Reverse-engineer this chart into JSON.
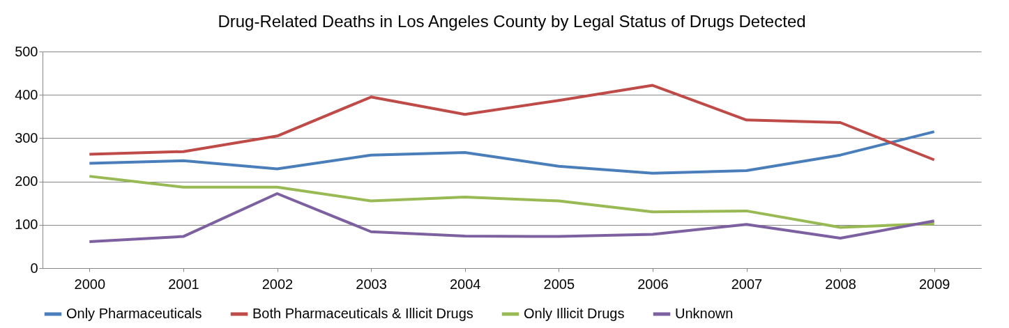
{
  "chart_data": {
    "type": "line",
    "title": "Drug-Related Deaths in Los Angeles County by Legal Status of Drugs Detected",
    "categories": [
      "2000",
      "2001",
      "2002",
      "2003",
      "2004",
      "2005",
      "2006",
      "2007",
      "2008",
      "2009"
    ],
    "series": [
      {
        "name": "Only Pharmaceuticals",
        "color": "#4a7ebb",
        "values": [
          242,
          248,
          229,
          261,
          267,
          235,
          219,
          225,
          261,
          315
        ]
      },
      {
        "name": "Both Pharmaceuticals & Illicit Drugs",
        "color": "#be4b48",
        "values": [
          263,
          269,
          305,
          395,
          355,
          387,
          422,
          342,
          336,
          250
        ]
      },
      {
        "name": "Only Illicit Drugs",
        "color": "#98b954",
        "values": [
          212,
          187,
          187,
          155,
          164,
          155,
          130,
          132,
          94,
          103
        ]
      },
      {
        "name": "Unknown",
        "color": "#7d60a0",
        "values": [
          61,
          73,
          172,
          84,
          74,
          73,
          78,
          101,
          69,
          109
        ]
      }
    ],
    "ylim": [
      0,
      500
    ],
    "yticks": [
      0,
      100,
      200,
      300,
      400,
      500
    ],
    "grid": "y",
    "legend": "bottom",
    "marker": "none",
    "line_style": "solid"
  }
}
